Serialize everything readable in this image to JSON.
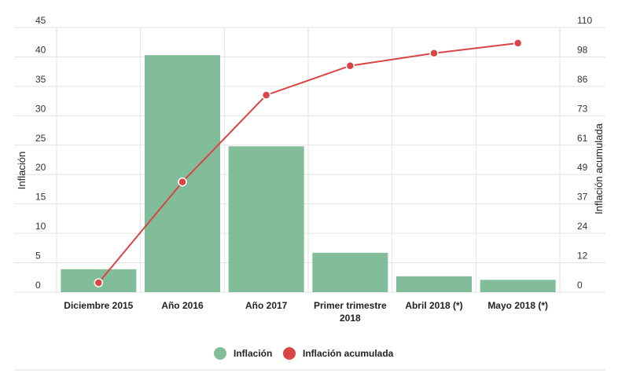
{
  "chart_data": {
    "type": "bar",
    "categories": [
      "Diciembre 2015",
      "Año 2016",
      "Año 2017",
      "Primer trimestre 2018",
      "Abril 2018 (*)",
      "Mayo 2018 (*)"
    ],
    "series": [
      {
        "name": "Inflación",
        "type": "bar",
        "axis": "left",
        "color": "#82bd99",
        "values": [
          3.9,
          40.3,
          24.8,
          6.7,
          2.7,
          2.1
        ]
      },
      {
        "name": "Inflación acumulada",
        "type": "line",
        "axis": "right",
        "color": "#d94545",
        "values": [
          3.9,
          45.8,
          81.9,
          94.1,
          99.3,
          103.5
        ]
      }
    ],
    "ylabel": "Inflación",
    "ylabel_right": "Inflación acumulada",
    "ylim": [
      0,
      45
    ],
    "ylim_right": [
      0,
      110
    ],
    "yticks": [
      "0",
      "5",
      "10",
      "15",
      "20",
      "25",
      "30",
      "35",
      "40",
      "45"
    ],
    "yticks_right": [
      "0",
      "12",
      "24",
      "37",
      "49",
      "61",
      "73",
      "86",
      "98",
      "110"
    ],
    "grid": true,
    "legend": "bottom-center"
  },
  "legend": {
    "items": [
      {
        "label": "Inflación",
        "color": "#82bd99"
      },
      {
        "label": "Inflación acumulada",
        "color": "#d94545"
      }
    ]
  }
}
